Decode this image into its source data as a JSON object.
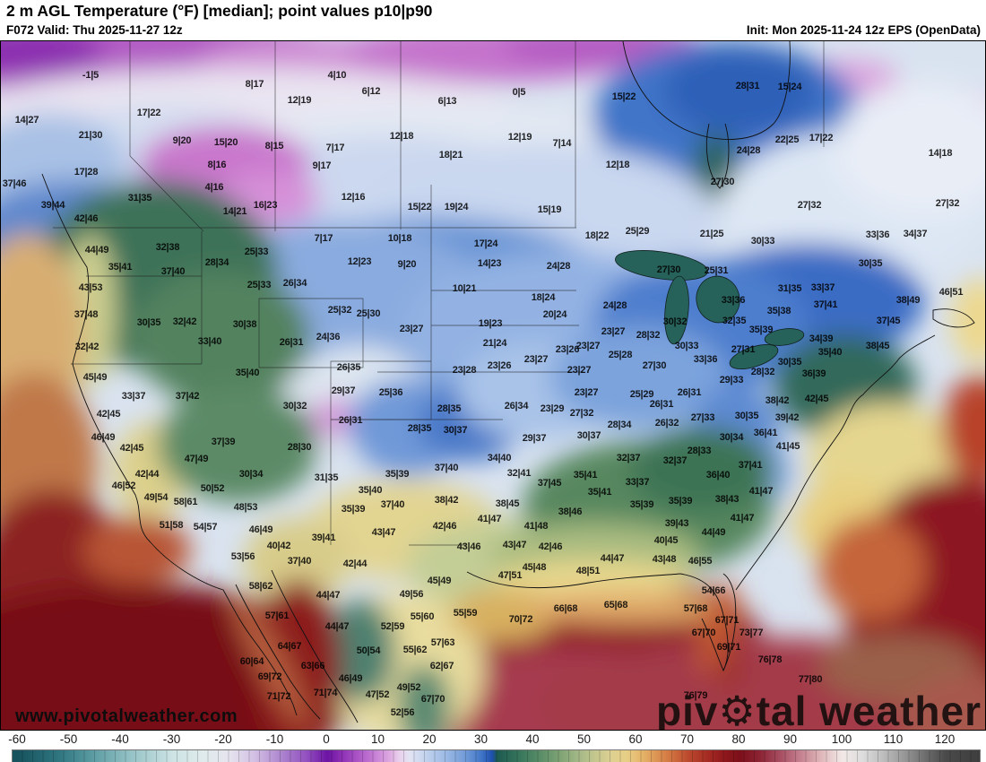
{
  "header": {
    "title": "2 m AGL Temperature (°F) [median]; point values p10|p90",
    "valid": "F072 Valid: Thu 2025-11-27 12z",
    "init": "Init: Mon 2025-11-24 12z EPS (OpenData)"
  },
  "watermark": {
    "text": "www.pivotalweather.com"
  },
  "logo": {
    "pre": "piv",
    "gear": "⚙",
    "post": "tal weather"
  },
  "colorbar": {
    "unit": "°F",
    "ticks": [
      -60,
      -50,
      -40,
      -30,
      -20,
      -10,
      0,
      10,
      20,
      30,
      40,
      50,
      60,
      70,
      80,
      90,
      100,
      110,
      120
    ],
    "stops": [
      [
        -60,
        "#17535e"
      ],
      [
        -52,
        "#2f7681"
      ],
      [
        -45,
        "#5f9fa5"
      ],
      [
        -38,
        "#96c3c6"
      ],
      [
        -30,
        "#cde3e4"
      ],
      [
        -24,
        "#e0ebec"
      ],
      [
        -19,
        "#e6e4ef"
      ],
      [
        -14,
        "#d2bfe4"
      ],
      [
        -9,
        "#ad86ce"
      ],
      [
        -4,
        "#9350c0"
      ],
      [
        0,
        "#6d14a4"
      ],
      [
        3,
        "#8f32b6"
      ],
      [
        6,
        "#ab56c6"
      ],
      [
        9,
        "#c47cd4"
      ],
      [
        12,
        "#dca7e0"
      ],
      [
        14,
        "#e9d0ec"
      ],
      [
        16,
        "#e3e4f3"
      ],
      [
        19,
        "#c3d3ee"
      ],
      [
        23,
        "#9cbae5"
      ],
      [
        27,
        "#6e99d7"
      ],
      [
        30,
        "#3f74c6"
      ],
      [
        32,
        "#1d50ae"
      ],
      [
        33,
        "#1d5a50"
      ],
      [
        37,
        "#35745b"
      ],
      [
        41,
        "#568b66"
      ],
      [
        45,
        "#7da274"
      ],
      [
        49,
        "#a6b987"
      ],
      [
        52,
        "#c4c78e"
      ],
      [
        55,
        "#ddd092"
      ],
      [
        58,
        "#e7cf86"
      ],
      [
        61,
        "#e5b56a"
      ],
      [
        64,
        "#dc9353"
      ],
      [
        67,
        "#d0703e"
      ],
      [
        70,
        "#bc4a2e"
      ],
      [
        74,
        "#a42a22"
      ],
      [
        77,
        "#8f181c"
      ],
      [
        80,
        "#7d0f1a"
      ],
      [
        84,
        "#8c2434"
      ],
      [
        88,
        "#a84f63"
      ],
      [
        92,
        "#c68391"
      ],
      [
        96,
        "#e0b9bc"
      ],
      [
        100,
        "#f2e9e7"
      ],
      [
        104,
        "#dcdcdc"
      ],
      [
        108,
        "#bcbcbc"
      ],
      [
        112,
        "#979797"
      ],
      [
        116,
        "#6e6e6e"
      ],
      [
        120,
        "#4a4a4a"
      ],
      [
        130,
        "#3e3e3e"
      ]
    ]
  },
  "chart_data": {
    "type": "heatmap",
    "title": "2 m AGL Temperature (°F) [median]; point values p10|p90",
    "value_format": "p10|p90",
    "colorbar_range": [
      -60,
      120
    ],
    "colorbar_tick_step": 10
  },
  "map": {
    "points": [
      [
        "-1|5",
        100,
        83
      ],
      [
        "4|10",
        375,
        83
      ],
      [
        "8|17",
        283,
        93
      ],
      [
        "28|31",
        833,
        95
      ],
      [
        "15|24",
        880,
        96
      ],
      [
        "6|12",
        413,
        101
      ],
      [
        "0|5",
        578,
        102
      ],
      [
        "15|22",
        695,
        107
      ],
      [
        "12|19",
        333,
        111
      ],
      [
        "6|13",
        498,
        112
      ],
      [
        "17|22",
        165,
        125
      ],
      [
        "14|27",
        29,
        133
      ],
      [
        "21|30",
        100,
        150
      ],
      [
        "12|18",
        447,
        151
      ],
      [
        "12|19",
        579,
        152
      ],
      [
        "17|22",
        915,
        153
      ],
      [
        "22|25",
        877,
        155
      ],
      [
        "9|20",
        202,
        156
      ],
      [
        "15|20",
        251,
        158
      ],
      [
        "7|14",
        626,
        159
      ],
      [
        "8|15",
        305,
        162
      ],
      [
        "7|17",
        373,
        164
      ],
      [
        "24|28",
        834,
        167
      ],
      [
        "14|18",
        1048,
        170
      ],
      [
        "18|21",
        502,
        172
      ],
      [
        "8|16",
        241,
        183
      ],
      [
        "9|17",
        358,
        184
      ],
      [
        "12|18",
        688,
        183
      ],
      [
        "17|28",
        95,
        191
      ],
      [
        "27|30",
        805,
        202
      ],
      [
        "37|46",
        15,
        204
      ],
      [
        "4|16",
        238,
        208
      ],
      [
        "12|16",
        393,
        219
      ],
      [
        "31|35",
        155,
        220
      ],
      [
        "27|32",
        1056,
        226
      ],
      [
        "39|44",
        58,
        228
      ],
      [
        "16|23",
        295,
        228
      ],
      [
        "27|32",
        902,
        228
      ],
      [
        "15|22",
        467,
        230
      ],
      [
        "19|24",
        508,
        230
      ],
      [
        "15|19",
        612,
        233
      ],
      [
        "14|21",
        261,
        235
      ],
      [
        "42|46",
        95,
        243
      ],
      [
        "25|29",
        710,
        257
      ],
      [
        "21|25",
        793,
        260
      ],
      [
        "34|37",
        1020,
        260
      ],
      [
        "33|36",
        978,
        261
      ],
      [
        "18|22",
        665,
        262
      ],
      [
        "7|17",
        360,
        265
      ],
      [
        "10|18",
        445,
        265
      ],
      [
        "30|33",
        850,
        268
      ],
      [
        "17|24",
        541,
        271
      ],
      [
        "32|38",
        186,
        275
      ],
      [
        "44|49",
        107,
        278
      ],
      [
        "25|33",
        285,
        280
      ],
      [
        "12|23",
        400,
        291
      ],
      [
        "28|34",
        241,
        292
      ],
      [
        "14|23",
        545,
        293
      ],
      [
        "30|35",
        970,
        293
      ],
      [
        "9|20",
        453,
        294
      ],
      [
        "24|28",
        622,
        296
      ],
      [
        "35|41",
        133,
        297
      ],
      [
        "27|30",
        745,
        300
      ],
      [
        "25|31",
        798,
        301
      ],
      [
        "37|40",
        192,
        302
      ],
      [
        "26|34",
        328,
        315
      ],
      [
        "25|33",
        288,
        317
      ],
      [
        "43|53",
        100,
        320
      ],
      [
        "33|37",
        917,
        320
      ],
      [
        "31|35",
        880,
        321
      ],
      [
        "10|21",
        517,
        321
      ],
      [
        "46|51",
        1060,
        325
      ],
      [
        "18|24",
        605,
        331
      ],
      [
        "33|36",
        817,
        334
      ],
      [
        "38|49",
        1012,
        334
      ],
      [
        "37|41",
        920,
        339
      ],
      [
        "24|28",
        685,
        340
      ],
      [
        "25|32",
        378,
        345
      ],
      [
        "35|38",
        868,
        346
      ],
      [
        "25|30",
        410,
        349
      ],
      [
        "37|48",
        95,
        350
      ],
      [
        "20|24",
        618,
        350
      ],
      [
        "37|45",
        990,
        357
      ],
      [
        "32|35",
        818,
        357
      ],
      [
        "30|32",
        752,
        358
      ],
      [
        "30|35",
        165,
        359
      ],
      [
        "32|42",
        205,
        358
      ],
      [
        "19|23",
        546,
        360
      ],
      [
        "30|38",
        272,
        361
      ],
      [
        "23|27",
        458,
        366
      ],
      [
        "35|39",
        848,
        367
      ],
      [
        "23|27",
        683,
        369
      ],
      [
        "28|32",
        722,
        373
      ],
      [
        "24|36",
        365,
        375
      ],
      [
        "34|39",
        915,
        377
      ],
      [
        "33|40",
        233,
        380
      ],
      [
        "26|31",
        324,
        381
      ],
      [
        "21|24",
        551,
        382
      ],
      [
        "30|33",
        765,
        385
      ],
      [
        "23|27",
        655,
        385
      ],
      [
        "38|45",
        978,
        385
      ],
      [
        "32|42",
        96,
        386
      ],
      [
        "23|26",
        632,
        389
      ],
      [
        "27|31",
        828,
        389
      ],
      [
        "35|40",
        925,
        392
      ],
      [
        "25|28",
        691,
        395
      ],
      [
        "23|27",
        597,
        400
      ],
      [
        "33|36",
        786,
        400
      ],
      [
        "30|35",
        880,
        403
      ],
      [
        "23|26",
        556,
        407
      ],
      [
        "27|30",
        729,
        407
      ],
      [
        "26|35",
        388,
        409
      ],
      [
        "23|27",
        645,
        412
      ],
      [
        "23|28",
        517,
        412
      ],
      [
        "28|32",
        850,
        414
      ],
      [
        "35|40",
        275,
        415
      ],
      [
        "36|39",
        907,
        416
      ],
      [
        "45|49",
        105,
        420
      ],
      [
        "29|33",
        815,
        423
      ],
      [
        "29|37",
        382,
        435
      ],
      [
        "25|36",
        435,
        437
      ],
      [
        "23|27",
        653,
        437
      ],
      [
        "26|31",
        768,
        437
      ],
      [
        "25|29",
        715,
        439
      ],
      [
        "33|37",
        148,
        441
      ],
      [
        "37|42",
        208,
        441
      ],
      [
        "42|45",
        910,
        444
      ],
      [
        "38|42",
        866,
        446
      ],
      [
        "26|31",
        737,
        450
      ],
      [
        "30|32",
        328,
        452
      ],
      [
        "26|34",
        575,
        452
      ],
      [
        "23|29",
        615,
        455
      ],
      [
        "28|35",
        500,
        455
      ],
      [
        "27|32",
        648,
        460
      ],
      [
        "42|45",
        120,
        461
      ],
      [
        "30|35",
        832,
        463
      ],
      [
        "27|33",
        783,
        465
      ],
      [
        "39|42",
        877,
        465
      ],
      [
        "26|31",
        390,
        468
      ],
      [
        "26|32",
        743,
        471
      ],
      [
        "28|34",
        690,
        473
      ],
      [
        "28|35",
        467,
        477
      ],
      [
        "30|37",
        507,
        479
      ],
      [
        "36|41",
        853,
        482
      ],
      [
        "30|37",
        656,
        485
      ],
      [
        "46|49",
        114,
        487
      ],
      [
        "30|34",
        815,
        487
      ],
      [
        "29|37",
        595,
        488
      ],
      [
        "37|39",
        248,
        492
      ],
      [
        "41|45",
        878,
        497
      ],
      [
        "28|30",
        333,
        498
      ],
      [
        "42|45",
        146,
        499
      ],
      [
        "28|33",
        779,
        502
      ],
      [
        "34|40",
        556,
        510
      ],
      [
        "32|37",
        700,
        510
      ],
      [
        "47|49",
        218,
        511
      ],
      [
        "32|37",
        752,
        513
      ],
      [
        "37|41",
        836,
        518
      ],
      [
        "37|40",
        497,
        521
      ],
      [
        "32|41",
        578,
        527
      ],
      [
        "42|44",
        163,
        528
      ],
      [
        "30|34",
        279,
        528
      ],
      [
        "35|39",
        442,
        528
      ],
      [
        "35|41",
        652,
        529
      ],
      [
        "36|40",
        800,
        529
      ],
      [
        "31|35",
        363,
        532
      ],
      [
        "33|37",
        710,
        537
      ],
      [
        "37|45",
        612,
        538
      ],
      [
        "46|52",
        137,
        541
      ],
      [
        "50|52",
        236,
        544
      ],
      [
        "35|40",
        412,
        546
      ],
      [
        "41|47",
        848,
        547
      ],
      [
        "35|41",
        668,
        548
      ],
      [
        "49|54",
        173,
        554
      ],
      [
        "38|43",
        810,
        556
      ],
      [
        "38|42",
        497,
        557
      ],
      [
        "35|39",
        758,
        558
      ],
      [
        "58|61",
        206,
        559
      ],
      [
        "38|45",
        565,
        561
      ],
      [
        "37|40",
        437,
        562
      ],
      [
        "35|39",
        715,
        562
      ],
      [
        "48|53",
        273,
        565
      ],
      [
        "35|39",
        393,
        567
      ],
      [
        "38|46",
        635,
        570
      ],
      [
        "41|47",
        827,
        577
      ],
      [
        "41|47",
        545,
        578
      ],
      [
        "39|43",
        754,
        583
      ],
      [
        "51|58",
        190,
        585
      ],
      [
        "42|46",
        495,
        586
      ],
      [
        "41|48",
        597,
        586
      ],
      [
        "54|57",
        228,
        587
      ],
      [
        "46|49",
        290,
        590
      ],
      [
        "44|49",
        795,
        593
      ],
      [
        "43|47",
        427,
        593
      ],
      [
        "39|41",
        360,
        599
      ],
      [
        "40|45",
        742,
        602
      ],
      [
        "43|47",
        573,
        607
      ],
      [
        "40|42",
        310,
        608
      ],
      [
        "43|46",
        522,
        609
      ],
      [
        "42|46",
        613,
        609
      ],
      [
        "53|56",
        270,
        620
      ],
      [
        "44|47",
        682,
        622
      ],
      [
        "43|48",
        740,
        623
      ],
      [
        "37|40",
        333,
        625
      ],
      [
        "46|55",
        780,
        625
      ],
      [
        "42|44",
        395,
        628
      ],
      [
        "45|48",
        595,
        632
      ],
      [
        "48|51",
        655,
        636
      ],
      [
        "47|51",
        568,
        641
      ],
      [
        "45|49",
        489,
        647
      ],
      [
        "58|62",
        290,
        653
      ],
      [
        "54|66",
        795,
        658
      ],
      [
        "49|56",
        458,
        662
      ],
      [
        "44|47",
        365,
        663
      ],
      [
        "65|68",
        686,
        674
      ],
      [
        "66|68",
        630,
        678
      ],
      [
        "57|68",
        775,
        678
      ],
      [
        "55|59",
        518,
        683
      ],
      [
        "57|61",
        308,
        686
      ],
      [
        "55|60",
        470,
        687
      ],
      [
        "70|72",
        580,
        690
      ],
      [
        "67|71",
        810,
        691
      ],
      [
        "44|47",
        375,
        698
      ],
      [
        "52|59",
        437,
        698
      ],
      [
        "67|70",
        784,
        705
      ],
      [
        "73|77",
        837,
        705
      ],
      [
        "57|63",
        493,
        716
      ],
      [
        "64|67",
        322,
        720
      ],
      [
        "69|71",
        812,
        721
      ],
      [
        "55|62",
        462,
        724
      ],
      [
        "50|54",
        410,
        725
      ],
      [
        "76|78",
        858,
        735
      ],
      [
        "60|64",
        280,
        737
      ],
      [
        "63|66",
        348,
        742
      ],
      [
        "62|67",
        492,
        742
      ],
      [
        "69|72",
        300,
        754
      ],
      [
        "46|49",
        390,
        756
      ],
      [
        "77|80",
        903,
        757
      ],
      [
        "49|52",
        455,
        766
      ],
      [
        "71|74",
        362,
        772
      ],
      [
        "47|52",
        420,
        774
      ],
      [
        "76|79",
        775,
        775
      ],
      [
        "71|72",
        310,
        776
      ],
      [
        "67|70",
        482,
        779
      ],
      [
        "52|56",
        448,
        794
      ]
    ]
  }
}
